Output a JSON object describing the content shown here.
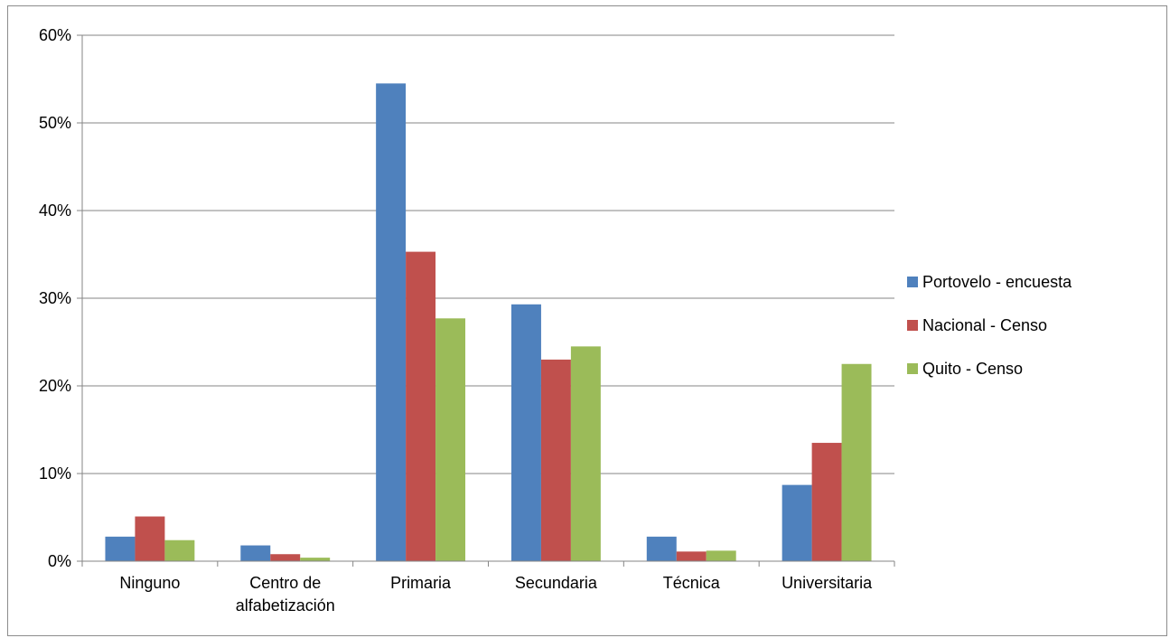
{
  "chart_data": {
    "type": "bar",
    "title": "",
    "xlabel": "",
    "ylabel": "",
    "ylim": [
      0,
      0.6
    ],
    "yticks": [
      "0%",
      "10%",
      "20%",
      "30%",
      "40%",
      "50%",
      "60%"
    ],
    "grid": true,
    "legend_position": "right",
    "categories": [
      "Ninguno",
      "Centro de alfabetización",
      "Primaria",
      "Secundaria",
      "Técnica",
      "Universitaria"
    ],
    "category_lines": [
      [
        "Ninguno"
      ],
      [
        "Centro de",
        "alfabetización"
      ],
      [
        "Primaria"
      ],
      [
        "Secundaria"
      ],
      [
        "Técnica"
      ],
      [
        "Universitaria"
      ]
    ],
    "series": [
      {
        "name": "Portovelo - encuesta",
        "color": "#4f81bd",
        "values": [
          0.028,
          0.018,
          0.545,
          0.293,
          0.028,
          0.087
        ]
      },
      {
        "name": "Nacional - Censo",
        "color": "#c0504d",
        "values": [
          0.051,
          0.008,
          0.353,
          0.23,
          0.011,
          0.135
        ]
      },
      {
        "name": "Quito  - Censo",
        "color": "#9bbb59",
        "values": [
          0.024,
          0.004,
          0.277,
          0.245,
          0.012,
          0.225
        ]
      }
    ]
  }
}
